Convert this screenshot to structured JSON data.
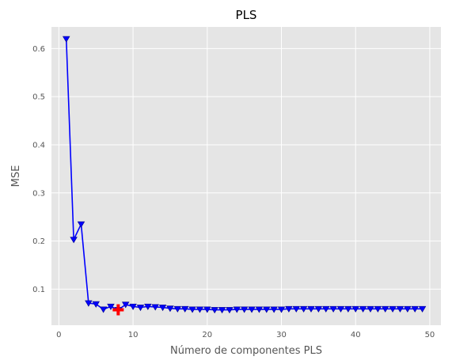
{
  "chart_data": {
    "type": "line",
    "title": "PLS",
    "xlabel": "Número de componentes PLS",
    "ylabel": "MSE",
    "xlim": [
      -1,
      51.5
    ],
    "ylim": [
      0.025,
      0.645
    ],
    "xticks": [
      0,
      10,
      20,
      30,
      40,
      50
    ],
    "yticks": [
      0.1,
      0.2,
      0.3,
      0.4,
      0.5,
      0.6
    ],
    "xtick_labels": [
      "0",
      "10",
      "20",
      "30",
      "40",
      "50"
    ],
    "ytick_labels": [
      "0.1",
      "0.2",
      "0.3",
      "0.4",
      "0.5",
      "0.6"
    ],
    "grid": true,
    "style": "ggplot",
    "background_color": "#e5e5e5",
    "grid_color": "#ffffff",
    "series": [
      {
        "color": "#0000ff",
        "marker": "triangle-down",
        "x": [
          1,
          2,
          3,
          4,
          5,
          6,
          7,
          8,
          9,
          10,
          11,
          12,
          13,
          14,
          15,
          16,
          17,
          18,
          19,
          20,
          21,
          22,
          23,
          24,
          25,
          26,
          27,
          28,
          29,
          30,
          31,
          32,
          33,
          34,
          35,
          36,
          37,
          38,
          39,
          40,
          41,
          42,
          43,
          44,
          45,
          46,
          47,
          48,
          49
        ],
        "y": [
          0.62,
          0.203,
          0.235,
          0.071,
          0.069,
          0.058,
          0.064,
          0.057,
          0.068,
          0.064,
          0.062,
          0.064,
          0.063,
          0.062,
          0.06,
          0.059,
          0.059,
          0.058,
          0.058,
          0.058,
          0.057,
          0.057,
          0.057,
          0.058,
          0.058,
          0.058,
          0.058,
          0.058,
          0.058,
          0.058,
          0.059,
          0.059,
          0.059,
          0.059,
          0.059,
          0.059,
          0.059,
          0.059,
          0.059,
          0.059,
          0.059,
          0.059,
          0.059,
          0.059,
          0.059,
          0.059,
          0.059,
          0.059,
          0.059
        ]
      }
    ],
    "highlight": {
      "x": 8,
      "y": 0.057,
      "marker": "plus",
      "color": "#ff0000"
    }
  }
}
